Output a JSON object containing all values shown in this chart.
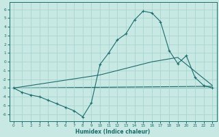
{
  "background_color": "#c8e8e4",
  "grid_color": "#a8d4d0",
  "line_color": "#1a6b6b",
  "xlabel": "Humidex (Indice chaleur)",
  "xlim": [
    -0.5,
    23.5
  ],
  "ylim": [
    -6.8,
    6.8
  ],
  "yticks": [
    -6,
    -5,
    -4,
    -3,
    -2,
    -1,
    0,
    1,
    2,
    3,
    4,
    5,
    6
  ],
  "xticks": [
    0,
    1,
    2,
    3,
    4,
    5,
    6,
    7,
    8,
    9,
    10,
    11,
    12,
    13,
    14,
    15,
    16,
    17,
    18,
    19,
    20,
    21,
    22,
    23
  ],
  "curve_x": [
    0,
    1,
    2,
    3,
    4,
    5,
    6,
    7,
    8,
    9,
    10,
    11,
    12,
    13,
    14,
    15,
    16,
    17,
    18,
    19,
    20,
    21,
    22,
    23
  ],
  "curve_y": [
    -3.0,
    -3.5,
    -3.8,
    -4.0,
    -4.4,
    -4.8,
    -5.2,
    -5.6,
    -6.3,
    -4.7,
    -0.3,
    1.0,
    2.5,
    3.2,
    4.8,
    5.8,
    5.6,
    4.6,
    1.3,
    -0.2,
    0.7,
    -1.8,
    -2.7,
    -3.0
  ],
  "line2_x": [
    0,
    10,
    16,
    19,
    23
  ],
  "line2_y": [
    -3.0,
    -1.5,
    0.0,
    0.5,
    -2.7
  ],
  "line3_x": [
    0,
    23
  ],
  "line3_y": [
    -3.0,
    -2.8
  ],
  "line4_x": [
    0,
    23
  ],
  "line4_y": [
    -3.0,
    -3.0
  ]
}
